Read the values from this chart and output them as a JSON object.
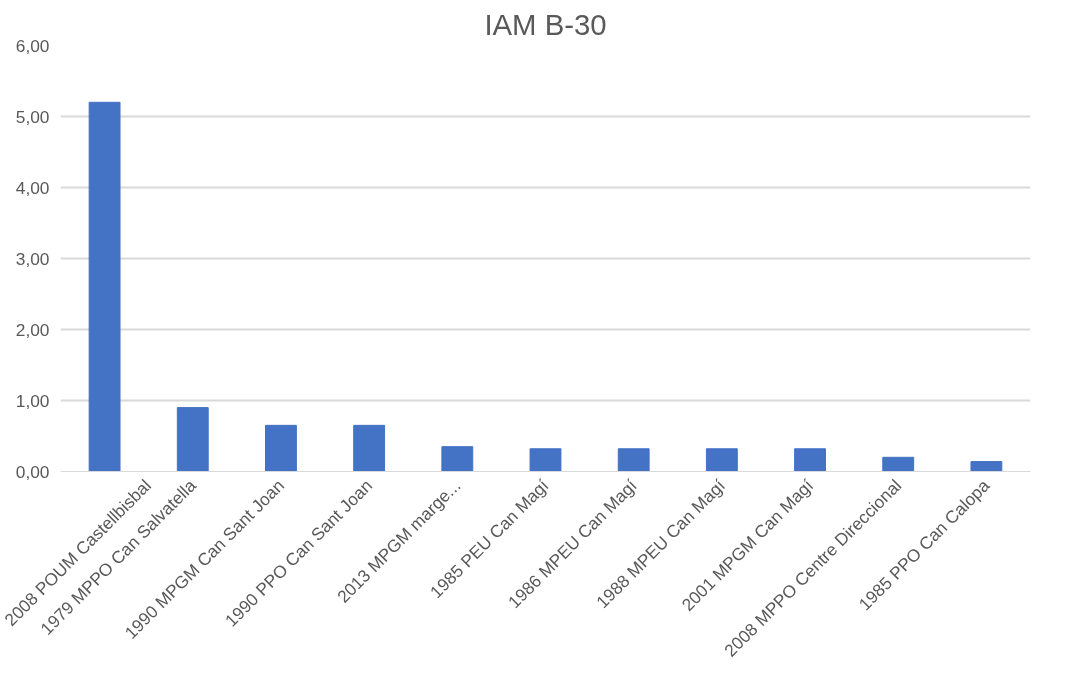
{
  "chart_data": {
    "type": "bar",
    "title": "IAM B-30",
    "categories": [
      "2008 POUM Castellbisbal",
      "1979 MPPO Can Salvatella",
      "1990 MPGM Can Sant Joan",
      "1990 PPO Can Sant Joan",
      "2013 MPGM marge...",
      "1985 PEU Can Magí",
      "1986 MPEU Can Magí",
      "1988 MPEU Can Magí",
      "2001 MPGM Can Magí",
      "2008 MPPO Centre Direccional",
      "1985 PPO Can Calopa"
    ],
    "values": [
      5.2,
      0.9,
      0.65,
      0.65,
      0.35,
      0.32,
      0.32,
      0.32,
      0.32,
      0.2,
      0.14
    ],
    "color": "#4472c4",
    "ylim": [
      0,
      6
    ],
    "yticks": [
      {
        "value": 0,
        "label": "0,00"
      },
      {
        "value": 1,
        "label": "1,00"
      },
      {
        "value": 2,
        "label": "2,00"
      },
      {
        "value": 3,
        "label": "3,00"
      },
      {
        "value": 4,
        "label": "4,00"
      },
      {
        "value": 5,
        "label": "5,00"
      },
      {
        "value": 6,
        "label": "6,00"
      }
    ],
    "grid": "y"
  }
}
